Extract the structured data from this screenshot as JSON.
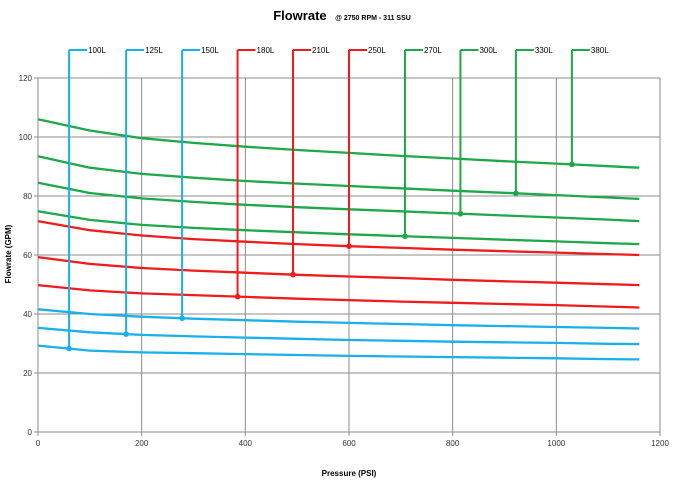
{
  "chart_data": {
    "type": "line",
    "title": "Flowrate",
    "subtitle": "@ 2750 RPM - 311 SSU",
    "xlabel": "Pressure (PSI)",
    "ylabel": "Flowrate (GPM)",
    "xlim": [
      0,
      1200
    ],
    "ylim": [
      0,
      120
    ],
    "x_ticks": [
      "0",
      "200",
      "400",
      "600",
      "800",
      "1000",
      "1200"
    ],
    "y_ticks": [
      "0",
      "20",
      "40",
      "60",
      "80",
      "100",
      "120"
    ],
    "x_tick_values": [
      0,
      200,
      400,
      600,
      800,
      1000,
      1200
    ],
    "y_tick_values": [
      0,
      20,
      40,
      60,
      80,
      100,
      120
    ],
    "grid": true,
    "legend_placement": "top, above plot area, with leader lines to markers",
    "colors": {
      "blue": "#1ab0e8",
      "red": "#ee1c1c",
      "green": "#1ea84a"
    },
    "x": [
      0,
      100,
      200,
      300,
      400,
      500,
      600,
      700,
      800,
      900,
      1000,
      1100,
      1160
    ],
    "series": [
      {
        "name": "100L",
        "color": "blue",
        "marker_x": 60,
        "values": [
          29.3,
          27.6,
          27.0,
          26.7,
          26.4,
          26.1,
          25.8,
          25.6,
          25.4,
          25.2,
          25.0,
          24.7,
          24.6
        ]
      },
      {
        "name": "125L",
        "color": "blue",
        "marker_x": 170,
        "values": [
          35.3,
          33.8,
          32.9,
          32.4,
          32.0,
          31.6,
          31.2,
          30.9,
          30.6,
          30.4,
          30.2,
          29.9,
          29.8
        ]
      },
      {
        "name": "150L",
        "color": "blue",
        "marker_x": 278,
        "values": [
          41.6,
          40.0,
          39.1,
          38.4,
          37.9,
          37.4,
          37.0,
          36.6,
          36.2,
          35.9,
          35.6,
          35.3,
          35.1
        ]
      },
      {
        "name": "180L",
        "color": "red",
        "marker_x": 385,
        "values": [
          49.8,
          48.0,
          47.0,
          46.4,
          45.8,
          45.2,
          44.7,
          44.2,
          43.8,
          43.4,
          43.0,
          42.5,
          42.2
        ]
      },
      {
        "name": "210L",
        "color": "red",
        "marker_x": 492,
        "values": [
          59.3,
          57.0,
          55.6,
          54.7,
          54.0,
          53.3,
          52.7,
          52.2,
          51.6,
          51.1,
          50.6,
          50.1,
          49.8
        ]
      },
      {
        "name": "250L",
        "color": "red",
        "marker_x": 600,
        "values": [
          71.5,
          68.4,
          66.6,
          65.4,
          64.5,
          63.7,
          63.0,
          62.4,
          61.8,
          61.3,
          60.8,
          60.3,
          60.0
        ]
      },
      {
        "name": "270L",
        "color": "green",
        "marker_x": 708,
        "values": [
          74.8,
          71.9,
          70.2,
          69.2,
          68.4,
          67.7,
          67.0,
          66.4,
          65.8,
          65.2,
          64.6,
          64.0,
          63.7
        ]
      },
      {
        "name": "300L",
        "color": "green",
        "marker_x": 815,
        "values": [
          84.5,
          81.0,
          79.2,
          78.0,
          77.0,
          76.2,
          75.5,
          74.8,
          74.1,
          73.4,
          72.7,
          72.0,
          71.5
        ]
      },
      {
        "name": "330L",
        "color": "green",
        "marker_x": 922,
        "values": [
          93.5,
          89.6,
          87.5,
          86.2,
          85.1,
          84.2,
          83.4,
          82.6,
          81.8,
          81.1,
          80.3,
          79.5,
          79.0
        ]
      },
      {
        "name": "380L",
        "color": "green",
        "marker_x": 1030,
        "values": [
          106.0,
          102.2,
          99.6,
          98.0,
          96.7,
          95.6,
          94.6,
          93.6,
          92.7,
          91.8,
          91.0,
          90.1,
          89.6
        ]
      }
    ]
  }
}
